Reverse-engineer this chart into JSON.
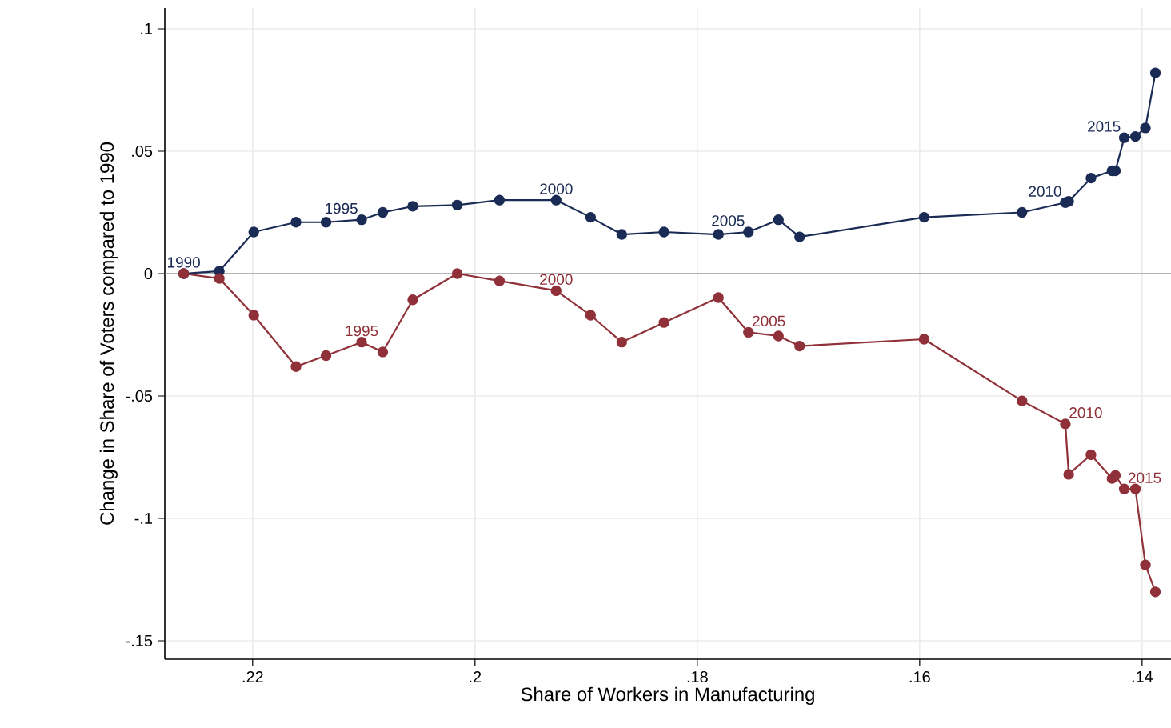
{
  "chart_data": {
    "type": "line",
    "xlabel": "Share of Workers in Manufacturing",
    "ylabel": "Change in Share of Voters compared to 1990",
    "x": [
      0.2262,
      0.223,
      0.2199,
      0.2161,
      0.2134,
      0.2102,
      0.2083,
      0.2056,
      0.2016,
      0.1978,
      0.1927,
      0.1896,
      0.1868,
      0.183,
      0.1781,
      0.1754,
      0.1727,
      0.1708,
      0.1596,
      0.1508,
      0.1469,
      0.1466,
      0.1446,
      0.1427,
      0.1424,
      0.1416,
      0.1406,
      0.1397,
      0.1388
    ],
    "series": [
      {
        "color": "#1a2b55",
        "values": [
          0,
          0.001,
          0.017,
          0.021,
          0.021,
          0.022,
          0.025,
          0.0275,
          0.028,
          0.03,
          0.03,
          0.023,
          0.016,
          0.017,
          0.016,
          0.017,
          0.022,
          0.015,
          0.023,
          0.025,
          0.029,
          0.0295,
          0.039,
          0.042,
          0.042,
          0.0555,
          0.056,
          0.0595,
          0.082
        ]
      },
      {
        "color": "#903038",
        "values": [
          0,
          -0.002,
          -0.017,
          -0.038,
          -0.0335,
          -0.028,
          -0.032,
          -0.0107,
          0,
          -0.003,
          -0.007,
          -0.017,
          -0.028,
          -0.02,
          -0.0098,
          -0.024,
          -0.0255,
          -0.0296,
          -0.0268,
          -0.052,
          -0.0614,
          -0.082,
          -0.074,
          -0.0837,
          -0.0824,
          -0.088,
          -0.088,
          -0.119,
          -0.13
        ]
      }
    ],
    "annotations": [
      {
        "text": "1990",
        "x": 0.2262,
        "y": 0
      },
      {
        "text": "1995",
        "x": 0.2102,
        "y": 0.022
      },
      {
        "text": "2000",
        "x": 0.1927,
        "y": 0.03
      },
      {
        "text": "2005",
        "x": 0.1754,
        "y": 0.017
      },
      {
        "text": "2010",
        "x": 0.1469,
        "y": 0.029
      },
      {
        "text": "2015",
        "x": 0.1416,
        "y": 0.0555
      },
      {
        "text": "1995",
        "x": 0.2102,
        "y": -0.028
      },
      {
        "text": "2000",
        "x": 0.1927,
        "y": -0.007
      },
      {
        "text": "2005",
        "x": 0.1754,
        "y": -0.024
      },
      {
        "text": "2010",
        "x": 0.1469,
        "y": -0.0614
      },
      {
        "text": "2015",
        "x": 0.1416,
        "y": -0.088
      }
    ],
    "xlim": [
      0.2279,
      0.1374
    ],
    "ylim": [
      -0.1575,
      0.1085
    ],
    "xticks": [
      {
        "value": 0.22,
        "label": ".22"
      },
      {
        "value": 0.2,
        "label": ".2"
      },
      {
        "value": 0.18,
        "label": ".18"
      },
      {
        "value": 0.16,
        "label": ".16"
      },
      {
        "value": 0.14,
        "label": ".14"
      }
    ],
    "yticks": [
      {
        "value": -0.15,
        "label": "-.15"
      },
      {
        "value": -0.1,
        "label": "-.1"
      },
      {
        "value": -0.05,
        "label": "-.05"
      },
      {
        "value": 0,
        "label": "0"
      },
      {
        "value": 0.05,
        "label": ".05"
      },
      {
        "value": 0.1,
        "label": ".1"
      }
    ],
    "ref_lines": [
      {
        "axis": "y",
        "value": 0,
        "color": "#a0a0a0"
      }
    ],
    "grid": true,
    "marker": "circle",
    "line_style": "solid"
  }
}
